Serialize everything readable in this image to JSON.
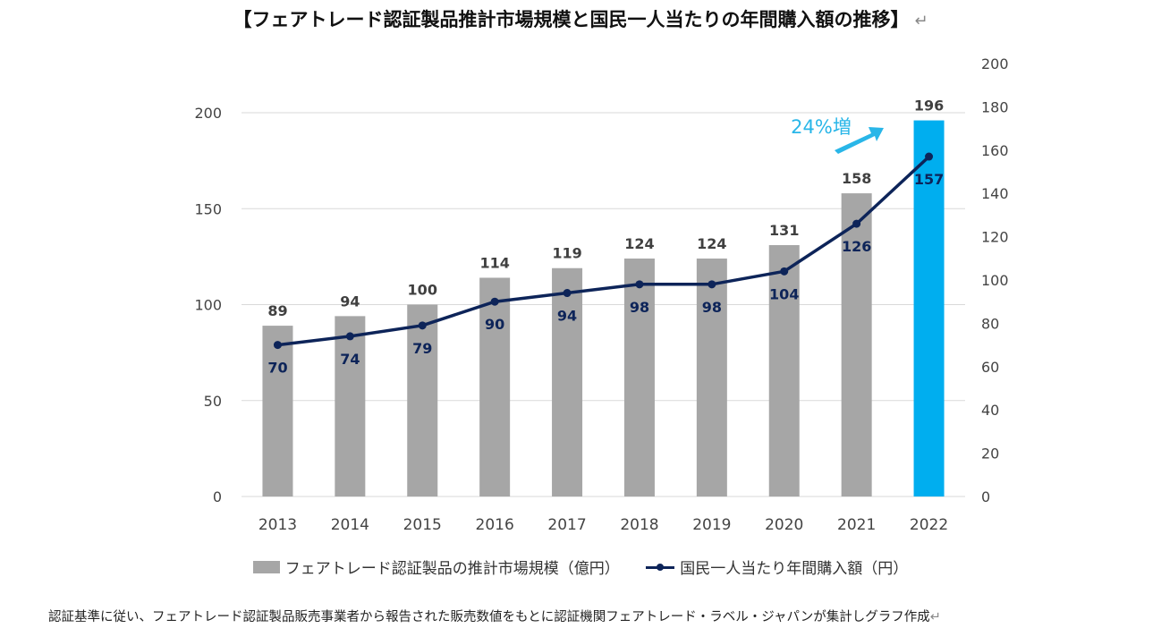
{
  "title": "【フェアトレード認証製品推計市場規模と国民一人当たりの年間購入額の推移】",
  "return_mark": "↵",
  "note": "認証基準に従い、フェアトレード認証製品販売事業者から報告された販売数値をもとに認証機関フェアトレード・ラベル・ジャパンが集計しグラフ作成",
  "colors": {
    "bar": "#a6a6a6",
    "bar_highlight": "#00aeef",
    "line": "#0d2459",
    "arrow": "#29b6e8",
    "grid": "#d9d9d9"
  },
  "chart_data": {
    "type": "bar",
    "categories": [
      "2013",
      "2014",
      "2015",
      "2016",
      "2017",
      "2018",
      "2019",
      "2020",
      "2021",
      "2022"
    ],
    "series": [
      {
        "name": "フェアトレード認証製品の推計市場規模（億円）",
        "type": "bar",
        "axis": "left",
        "values": [
          89,
          94,
          100,
          114,
          119,
          124,
          124,
          131,
          158,
          196
        ]
      },
      {
        "name": "国民一人当たり年間購入額（円）",
        "type": "line",
        "axis": "right",
        "values": [
          70,
          74,
          79,
          90,
          94,
          98,
          98,
          104,
          126,
          157
        ]
      }
    ],
    "highlight_category": "2022",
    "left_axis": {
      "ylim": [
        0,
        200
      ],
      "ticks": [
        0,
        50,
        100,
        150,
        200
      ]
    },
    "right_axis": {
      "ylim": [
        0,
        200
      ],
      "ticks": [
        0,
        20,
        40,
        60,
        80,
        100,
        120,
        140,
        160,
        180,
        200
      ]
    },
    "annotation": "24%増",
    "grid": true,
    "legend_position": "bottom"
  }
}
